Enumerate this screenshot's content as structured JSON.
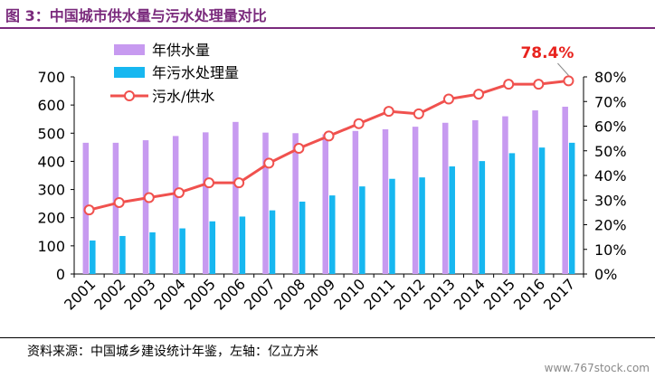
{
  "title": "图 3：中国城市供水量与污水处理量对比",
  "source": "资料来源：中国城乡建设统计年鉴，左轴：亿立方米",
  "watermark": "www.767stock.com",
  "colors": {
    "supply": "#c79af0",
    "treatment": "#17b7f0",
    "ratio": "#f0514e",
    "highlight": "#e8231e",
    "title": "#7a2a7c"
  },
  "chart_data": {
    "type": "bar",
    "categories": [
      "2001",
      "2002",
      "2003",
      "2004",
      "2005",
      "2006",
      "2007",
      "2008",
      "2009",
      "2010",
      "2011",
      "2012",
      "2013",
      "2014",
      "2015",
      "2016",
      "2017"
    ],
    "series": [
      {
        "name": "年供水量",
        "type": "bar",
        "axis": "left",
        "values": [
          466,
          466,
          475,
          490,
          503,
          540,
          502,
          500,
          496,
          508,
          514,
          523,
          537,
          546,
          560,
          581,
          594
        ]
      },
      {
        "name": "年污水处理量",
        "type": "bar",
        "axis": "left",
        "values": [
          119,
          135,
          148,
          162,
          187,
          204,
          226,
          257,
          279,
          311,
          338,
          343,
          382,
          401,
          429,
          449,
          466
        ]
      },
      {
        "name": "污水/供水",
        "type": "line",
        "axis": "right",
        "values": [
          0.26,
          0.29,
          0.31,
          0.33,
          0.37,
          0.37,
          0.45,
          0.51,
          0.56,
          0.61,
          0.66,
          0.65,
          0.71,
          0.73,
          0.77,
          0.77,
          0.784
        ]
      }
    ],
    "y_left": {
      "ylim": [
        0,
        700
      ],
      "ticks": [
        "0",
        "100",
        "200",
        "300",
        "400",
        "500",
        "600",
        "700"
      ]
    },
    "y_right": {
      "ylim": [
        0,
        0.8
      ],
      "ticks": [
        "0%",
        "10%",
        "20%",
        "30%",
        "40%",
        "50%",
        "60%",
        "70%",
        "80%"
      ]
    },
    "annotation": {
      "text": "78.4%",
      "series": "污水/供水",
      "category": "2017"
    },
    "legend_placement": "top-left",
    "grid": false
  }
}
